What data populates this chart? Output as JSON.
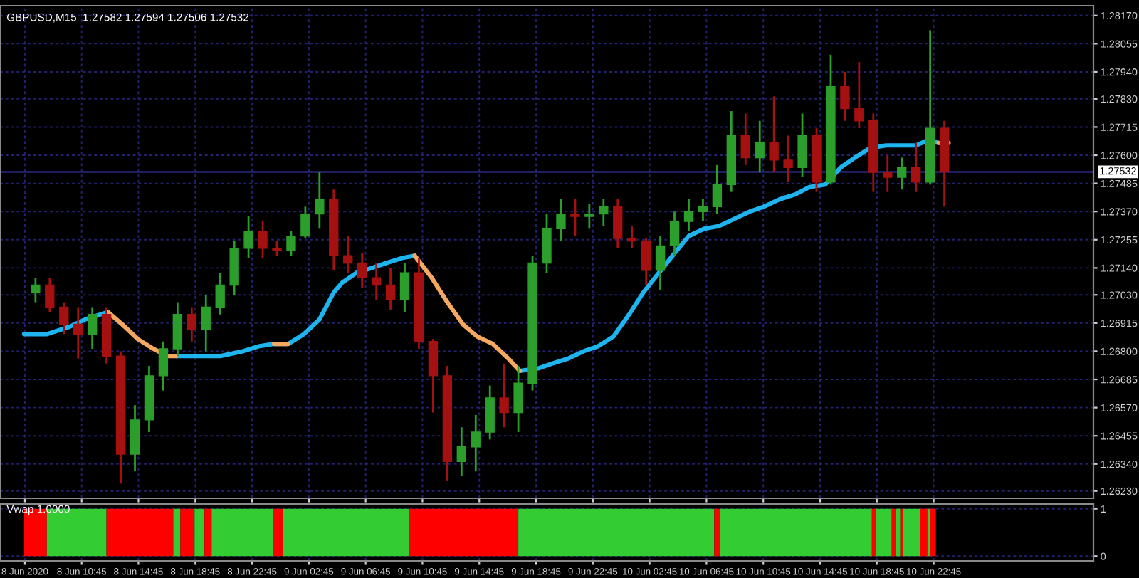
{
  "chart_data": [
    {
      "type": "candlestick",
      "title": "GBPUSD,M15  1.27582 1.27594 1.27506 1.27532",
      "x": [
        "2020-06-08T07:30",
        "2020-06-08T08:30",
        "2020-06-08T09:30",
        "2020-06-08T10:30",
        "2020-06-08T11:30",
        "2020-06-08T12:30",
        "2020-06-08T13:30",
        "2020-06-08T14:30",
        "2020-06-08T15:30",
        "2020-06-08T16:30",
        "2020-06-08T17:30",
        "2020-06-08T18:30",
        "2020-06-08T19:30",
        "2020-06-08T20:30",
        "2020-06-08T21:30",
        "2020-06-08T22:30",
        "2020-06-08T23:30",
        "2020-06-09T00:30",
        "2020-06-09T01:30",
        "2020-06-09T02:30",
        "2020-06-09T03:30",
        "2020-06-09T04:30",
        "2020-06-09T05:30",
        "2020-06-09T06:30",
        "2020-06-09T07:30",
        "2020-06-09T08:30",
        "2020-06-09T09:30",
        "2020-06-09T10:30",
        "2020-06-09T11:30",
        "2020-06-09T12:30",
        "2020-06-09T13:30",
        "2020-06-09T14:30",
        "2020-06-09T15:30",
        "2020-06-09T16:30",
        "2020-06-09T17:30",
        "2020-06-09T18:30",
        "2020-06-09T19:30",
        "2020-06-09T20:30",
        "2020-06-09T21:30",
        "2020-06-09T22:30",
        "2020-06-09T23:30",
        "2020-06-10T00:30",
        "2020-06-10T01:30",
        "2020-06-10T02:30",
        "2020-06-10T03:30",
        "2020-06-10T04:30",
        "2020-06-10T05:30",
        "2020-06-10T06:30",
        "2020-06-10T07:30",
        "2020-06-10T08:30",
        "2020-06-10T09:30",
        "2020-06-10T10:30",
        "2020-06-10T11:30",
        "2020-06-10T12:30",
        "2020-06-10T13:30",
        "2020-06-10T14:30",
        "2020-06-10T15:30",
        "2020-06-10T16:30",
        "2020-06-10T17:30",
        "2020-06-10T18:30",
        "2020-06-10T19:30",
        "2020-06-10T20:30",
        "2020-06-10T21:30",
        "2020-06-10T22:30",
        "2020-06-10T23:30"
      ],
      "ohlc": [
        [
          1.2704,
          1.271,
          1.27,
          1.2707
        ],
        [
          1.2707,
          1.271,
          1.2696,
          1.2698
        ],
        [
          1.2698,
          1.27,
          1.2687,
          1.2691
        ],
        [
          1.2691,
          1.2698,
          1.2677,
          1.2687
        ],
        [
          1.2687,
          1.2698,
          1.2681,
          1.2695
        ],
        [
          1.2695,
          1.2698,
          1.2675,
          1.2678
        ],
        [
          1.2678,
          1.268,
          1.2626,
          1.2638
        ],
        [
          1.2638,
          1.2658,
          1.2631,
          1.2652
        ],
        [
          1.2652,
          1.2674,
          1.2647,
          1.267
        ],
        [
          1.267,
          1.2684,
          1.2664,
          1.2681
        ],
        [
          1.2681,
          1.27,
          1.2678,
          1.2695
        ],
        [
          1.2695,
          1.2698,
          1.2684,
          1.2689
        ],
        [
          1.2689,
          1.2703,
          1.268,
          1.2698
        ],
        [
          1.2698,
          1.2712,
          1.2695,
          1.2707
        ],
        [
          1.2707,
          1.2725,
          1.2703,
          1.2722
        ],
        [
          1.2722,
          1.2735,
          1.2718,
          1.2729
        ],
        [
          1.2729,
          1.2733,
          1.2718,
          1.2722
        ],
        [
          1.2722,
          1.2725,
          1.2719,
          1.2721
        ],
        [
          1.2721,
          1.2729,
          1.2719,
          1.2727
        ],
        [
          1.2727,
          1.2739,
          1.2726,
          1.2736
        ],
        [
          1.2736,
          1.2753,
          1.273,
          1.2742
        ],
        [
          1.2742,
          1.2746,
          1.2713,
          1.2719
        ],
        [
          1.2719,
          1.2727,
          1.2712,
          1.2716
        ],
        [
          1.2716,
          1.272,
          1.2706,
          1.271
        ],
        [
          1.271,
          1.2716,
          1.2701,
          1.2707
        ],
        [
          1.2707,
          1.2714,
          1.2697,
          1.2701
        ],
        [
          1.2701,
          1.2716,
          1.2696,
          1.2712
        ],
        [
          1.2712,
          1.2718,
          1.2681,
          1.2684
        ],
        [
          1.2684,
          1.2685,
          1.2655,
          1.267
        ],
        [
          1.267,
          1.2674,
          1.2627,
          1.2635
        ],
        [
          1.2635,
          1.2649,
          1.2629,
          1.2641
        ],
        [
          1.2641,
          1.2654,
          1.2631,
          1.2647
        ],
        [
          1.2647,
          1.2666,
          1.2644,
          1.2661
        ],
        [
          1.2661,
          1.2675,
          1.2649,
          1.2655
        ],
        [
          1.2655,
          1.2674,
          1.2647,
          1.2667
        ],
        [
          1.2667,
          1.2719,
          1.2664,
          1.2716
        ],
        [
          1.2716,
          1.2736,
          1.2712,
          1.273
        ],
        [
          1.273,
          1.2742,
          1.2725,
          1.2736
        ],
        [
          1.2736,
          1.2742,
          1.2727,
          1.2735
        ],
        [
          1.2735,
          1.274,
          1.273,
          1.2736
        ],
        [
          1.2736,
          1.2742,
          1.2731,
          1.2739
        ],
        [
          1.2739,
          1.2742,
          1.2722,
          1.2726
        ],
        [
          1.2726,
          1.2731,
          1.2722,
          1.2725
        ],
        [
          1.2725,
          1.2726,
          1.2707,
          1.2713
        ],
        [
          1.2713,
          1.2727,
          1.2705,
          1.2723
        ],
        [
          1.2723,
          1.2737,
          1.2719,
          1.2733
        ],
        [
          1.2733,
          1.2742,
          1.2729,
          1.2737
        ],
        [
          1.2737,
          1.2742,
          1.2733,
          1.2739
        ],
        [
          1.2739,
          1.2756,
          1.2736,
          1.2748
        ],
        [
          1.2748,
          1.2778,
          1.2745,
          1.2768
        ],
        [
          1.2768,
          1.2777,
          1.2756,
          1.2759
        ],
        [
          1.2759,
          1.2774,
          1.2753,
          1.2765
        ],
        [
          1.2765,
          1.2784,
          1.2753,
          1.2758
        ],
        [
          1.2758,
          1.2768,
          1.2749,
          1.2755
        ],
        [
          1.2755,
          1.2777,
          1.2751,
          1.2768
        ],
        [
          1.2768,
          1.2771,
          1.2745,
          1.2749
        ],
        [
          1.2749,
          1.2801,
          1.2748,
          1.2788
        ],
        [
          1.2788,
          1.2794,
          1.2774,
          1.2779
        ],
        [
          1.2779,
          1.2798,
          1.2771,
          1.2774
        ],
        [
          1.2774,
          1.2777,
          1.2745,
          1.2753
        ],
        [
          1.2753,
          1.276,
          1.2745,
          1.2751
        ],
        [
          1.2751,
          1.2759,
          1.2746,
          1.2755
        ],
        [
          1.2755,
          1.2765,
          1.2745,
          1.2749
        ],
        [
          1.2749,
          1.2811,
          1.2748,
          1.2771
        ],
        [
          1.2771,
          1.2774,
          1.2739,
          1.27532
        ]
      ],
      "colors": [
        "#2b9e2b",
        "#a51010",
        "#a51010",
        "#a51010",
        "#2b9e2b",
        "#a51010",
        "#a51010",
        "#2b9e2b",
        "#2b9e2b",
        "#2b9e2b",
        "#2b9e2b",
        "#a51010",
        "#2b9e2b",
        "#2b9e2b",
        "#2b9e2b",
        "#2b9e2b",
        "#a51010",
        "#a51010",
        "#2b9e2b",
        "#2b9e2b",
        "#2b9e2b",
        "#a51010",
        "#a51010",
        "#a51010",
        "#a51010",
        "#a51010",
        "#2b9e2b",
        "#a51010",
        "#a51010",
        "#a51010",
        "#2b9e2b",
        "#2b9e2b",
        "#2b9e2b",
        "#a51010",
        "#2b9e2b",
        "#2b9e2b",
        "#2b9e2b",
        "#2b9e2b",
        "#a51010",
        "#2b9e2b",
        "#2b9e2b",
        "#a51010",
        "#a51010",
        "#a51010",
        "#2b9e2b",
        "#2b9e2b",
        "#2b9e2b",
        "#2b9e2b",
        "#2b9e2b",
        "#2b9e2b",
        "#a51010",
        "#2b9e2b",
        "#a51010",
        "#a51010",
        "#2b9e2b",
        "#a51010",
        "#2b9e2b",
        "#a51010",
        "#a51010",
        "#a51010",
        "#a51010",
        "#2b9e2b",
        "#a51010",
        "#2b9e2b",
        "#a51010"
      ],
      "series": [
        {
          "type": "line",
          "color": "#1eb4f0",
          "x": [
            "2020-06-08T06:42",
            "2020-06-08T08:18",
            "2020-06-08T09:54",
            "2020-06-08T11:00",
            "2020-06-08T12:36",
            "2020-06-08T13:36",
            "2020-06-08T14:42",
            "2020-06-08T15:48",
            "2020-06-08T16:48",
            "2020-06-08T17:24",
            "2020-06-08T18:54",
            "2020-06-08T20:30",
            "2020-06-08T22:06",
            "2020-06-08T23:12",
            "2020-06-09T00:18",
            "2020-06-09T01:18",
            "2020-06-09T02:24",
            "2020-06-09T03:30",
            "2020-06-09T04:30",
            "2020-06-09T05:06",
            "2020-06-09T06:06",
            "2020-06-09T07:12",
            "2020-06-09T08:12",
            "2020-06-09T09:18",
            "2020-06-09T10:12",
            "2020-06-09T11:24",
            "2020-06-09T12:30",
            "2020-06-09T13:36",
            "2020-06-09T14:36",
            "2020-06-09T15:42",
            "2020-06-09T16:48",
            "2020-06-09T17:36",
            "2020-06-09T18:54",
            "2020-06-09T19:54",
            "2020-06-09T21:00",
            "2020-06-09T22:06",
            "2020-06-09T23:06",
            "2020-06-10T00:12",
            "2020-06-10T01:18",
            "2020-06-10T02:18",
            "2020-06-10T03:24",
            "2020-06-10T04:30",
            "2020-06-10T05:30",
            "2020-06-10T06:36",
            "2020-06-10T07:36",
            "2020-06-10T08:42",
            "2020-06-10T09:48",
            "2020-06-10T10:48",
            "2020-06-10T11:54",
            "2020-06-10T13:00",
            "2020-06-10T14:00",
            "2020-06-10T15:06",
            "2020-06-10T16:12",
            "2020-06-10T17:12",
            "2020-06-10T18:18",
            "2020-06-10T19:24",
            "2020-06-10T20:24",
            "2020-06-10T21:30",
            "2020-06-10T22:18",
            "2020-06-10T23:06"
          ],
          "values": [
            1.2687,
            1.2687,
            1.269,
            1.2693,
            1.2696,
            null,
            null,
            null,
            null,
            1.2678,
            1.2678,
            1.2678,
            1.268,
            1.2682,
            1.2683,
            1.2683,
            1.2687,
            1.2693,
            1.2704,
            1.2708,
            1.2712,
            1.2714,
            1.2716,
            1.2718,
            1.2719,
            null,
            null,
            null,
            null,
            null,
            null,
            1.2672,
            1.2673,
            1.2675,
            1.2677,
            1.268,
            1.2682,
            1.2686,
            1.2695,
            1.2704,
            1.2712,
            1.272,
            1.2727,
            1.273,
            1.2731,
            1.2734,
            1.2737,
            1.2739,
            1.2742,
            1.2744,
            1.2747,
            1.2748,
            1.2755,
            1.2759,
            1.2763,
            1.2764,
            1.2764,
            1.2764,
            1.2766,
            1.2765
          ]
        },
        {
          "type": "line",
          "color": "#f5a860",
          "x": [
            "2020-06-08T12:36",
            "2020-06-08T13:36",
            "2020-06-08T14:42",
            "2020-06-08T15:48",
            "2020-06-08T16:48",
            "2020-06-08T17:24",
            "2020-06-08T20:00",
            "2020-06-09T00:18",
            "2020-06-09T01:18",
            "2020-06-09T06:00",
            "2020-06-09T10:12",
            "2020-06-09T11:24",
            "2020-06-09T12:30",
            "2020-06-09T13:36",
            "2020-06-09T14:36",
            "2020-06-09T15:42",
            "2020-06-09T16:48",
            "2020-06-09T17:36",
            "2020-06-10T12:00",
            "2020-06-10T23:06",
            "2020-06-10T23:48"
          ],
          "values": [
            1.2696,
            1.2691,
            1.2685,
            1.2681,
            1.2678,
            1.2678,
            null,
            1.2683,
            1.2683,
            null,
            1.2719,
            1.271,
            1.27,
            1.2691,
            1.2686,
            1.2683,
            1.2677,
            1.2672,
            null,
            1.2765,
            1.2765
          ]
        }
      ],
      "xlim": [
        "2020-06-08T05:00",
        "2020-06-11T10:00"
      ],
      "xticks": [
        {
          "value": "2020-06-08T06:45",
          "label": null
        },
        {
          "value": "2020-06-08T10:45",
          "label": null
        },
        {
          "value": "2020-06-08T14:45",
          "label": null
        },
        {
          "value": "2020-06-08T18:45",
          "label": null
        },
        {
          "value": "2020-06-08T22:45",
          "label": null
        },
        {
          "value": "2020-06-09T02:45",
          "label": null
        },
        {
          "value": "2020-06-09T06:45",
          "label": null
        },
        {
          "value": "2020-06-09T10:45",
          "label": null
        },
        {
          "value": "2020-06-09T14:45",
          "label": null
        },
        {
          "value": "2020-06-09T18:45",
          "label": null
        },
        {
          "value": "2020-06-09T22:45",
          "label": null
        },
        {
          "value": "2020-06-10T02:45",
          "label": null
        },
        {
          "value": "2020-06-10T06:45",
          "label": null
        },
        {
          "value": "2020-06-10T10:45",
          "label": null
        },
        {
          "value": "2020-06-10T14:45",
          "label": null
        },
        {
          "value": "2020-06-10T18:45",
          "label": null
        },
        {
          "value": "2020-06-10T22:45",
          "label": null
        }
      ],
      "ylim": [
        1.262,
        1.2821
      ],
      "yticks": [
        {
          "value": 1.2817,
          "label": "1.28170"
        },
        {
          "value": 1.28055,
          "label": "1.28055"
        },
        {
          "value": 1.2794,
          "label": "1.27940"
        },
        {
          "value": 1.2783,
          "label": "1.27830"
        },
        {
          "value": 1.27715,
          "label": "1.27715"
        },
        {
          "value": 1.276,
          "label": "1.27600"
        },
        {
          "value": 1.27485,
          "label": "1.27485"
        },
        {
          "value": 1.2737,
          "label": "1.27370"
        },
        {
          "value": 1.27255,
          "label": "1.27255"
        },
        {
          "value": 1.2714,
          "label": "1.27140"
        },
        {
          "value": 1.2703,
          "label": "1.27030"
        },
        {
          "value": 1.26915,
          "label": "1.26915"
        },
        {
          "value": 1.268,
          "label": "1.26800"
        },
        {
          "value": 1.26685,
          "label": "1.26685"
        },
        {
          "value": 1.2657,
          "label": "1.26570"
        },
        {
          "value": 1.26455,
          "label": "1.26455"
        },
        {
          "value": 1.2634,
          "label": "1.26340"
        },
        {
          "value": 1.2623,
          "label": "1.26230"
        }
      ],
      "ref_lines": [
        {
          "axis": "y",
          "value": 1.27532,
          "label": "1.27532",
          "color": "#2a2a80"
        }
      ],
      "grid": true,
      "tick_labels": "y"
    },
    {
      "type": "histogram",
      "title": "Vwap 1.0000",
      "bins": [
        "2020-06-08T06:42",
        "2020-06-08T08:18",
        "2020-06-08T12:30",
        "2020-06-08T17:12",
        "2020-06-08T17:42",
        "2020-06-08T18:42",
        "2020-06-08T19:24",
        "2020-06-08T19:54",
        "2020-06-09T00:12",
        "2020-06-09T00:54",
        "2020-06-09T09:48",
        "2020-06-09T17:30",
        "2020-06-10T07:18",
        "2020-06-10T07:42",
        "2020-06-10T18:24",
        "2020-06-10T18:42",
        "2020-06-10T19:48",
        "2020-06-10T20:06",
        "2020-06-10T20:24",
        "2020-06-10T20:36",
        "2020-06-10T21:48",
        "2020-06-10T22:18",
        "2020-06-10T22:30",
        "2020-06-10T22:54"
      ],
      "values": [
        1,
        1,
        1,
        1,
        1,
        1,
        1,
        1,
        1,
        1,
        1,
        1,
        1,
        1,
        1,
        1,
        1,
        1,
        1,
        1,
        1,
        1,
        1
      ],
      "colors": [
        "#ff0000",
        "#33cc33",
        "#ff0000",
        "#33cc33",
        "#ff0000",
        "#33cc33",
        "#ff0000",
        "#33cc33",
        "#ff0000",
        "#33cc33",
        "#ff0000",
        "#33cc33",
        "#ff0000",
        "#33cc33",
        "#ff0000",
        "#33cc33",
        "#ff0000",
        "#33cc33",
        "#ff0000",
        "#33cc33",
        "#ff0000",
        "#33cc33",
        "#ff0000"
      ],
      "xlim": [
        "2020-06-08T05:00",
        "2020-06-11T10:00"
      ],
      "xticks": [
        {
          "value": "2020-06-08T06:45",
          "label": "8 Jun 2020"
        },
        {
          "value": "2020-06-08T10:45",
          "label": "8 Jun 10:45"
        },
        {
          "value": "2020-06-08T14:45",
          "label": "8 Jun 14:45"
        },
        {
          "value": "2020-06-08T18:45",
          "label": "8 Jun 18:45"
        },
        {
          "value": "2020-06-08T22:45",
          "label": "8 Jun 22:45"
        },
        {
          "value": "2020-06-09T02:45",
          "label": "9 Jun 02:45"
        },
        {
          "value": "2020-06-09T06:45",
          "label": "9 Jun 06:45"
        },
        {
          "value": "2020-06-09T10:45",
          "label": "9 Jun 10:45"
        },
        {
          "value": "2020-06-09T14:45",
          "label": "9 Jun 14:45"
        },
        {
          "value": "2020-06-09T18:45",
          "label": "9 Jun 18:45"
        },
        {
          "value": "2020-06-09T22:45",
          "label": "9 Jun 22:45"
        },
        {
          "value": "2020-06-10T02:45",
          "label": "10 Jun 02:45"
        },
        {
          "value": "2020-06-10T06:45",
          "label": "10 Jun 06:45"
        },
        {
          "value": "2020-06-10T10:45",
          "label": "10 Jun 10:45"
        },
        {
          "value": "2020-06-10T14:45",
          "label": "10 Jun 14:45"
        },
        {
          "value": "2020-06-10T18:45",
          "label": "10 Jun 18:45"
        },
        {
          "value": "2020-06-10T22:45",
          "label": "10 Jun 22:45"
        }
      ],
      "ylim": [
        -0.1,
        1.1
      ],
      "yticks": [
        0,
        1
      ],
      "grid": true
    }
  ]
}
